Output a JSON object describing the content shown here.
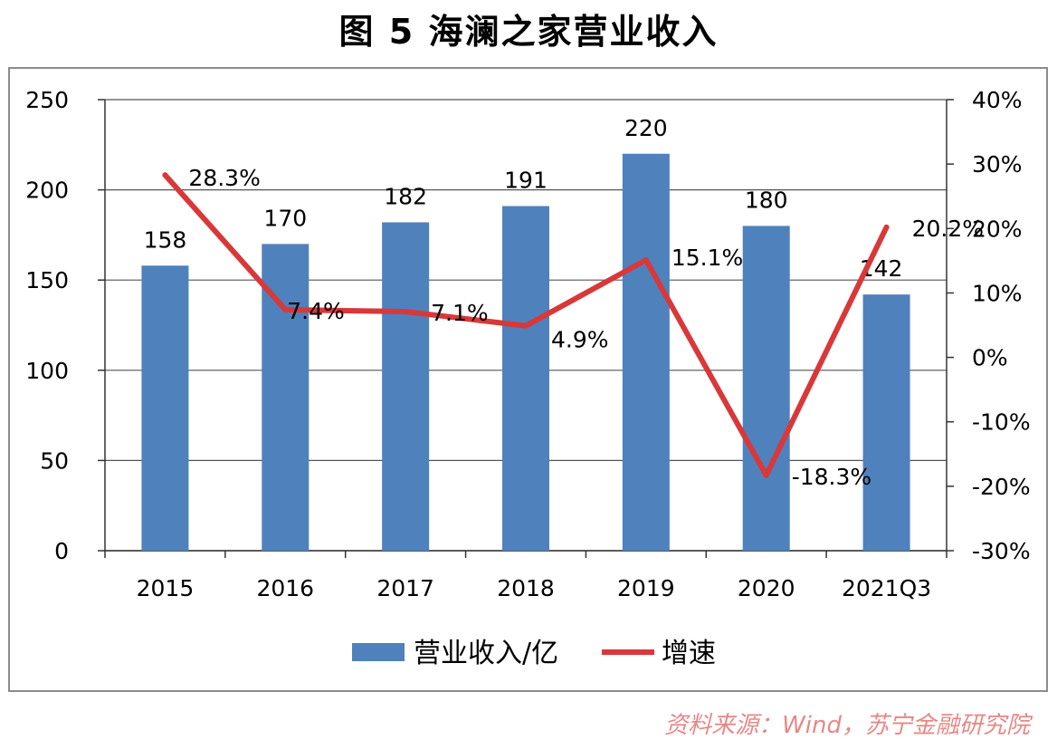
{
  "title": "图 5  海澜之家营业收入",
  "source": "资料来源：Wind，苏宁金融研究院",
  "colors": {
    "bar": "#4f81bd",
    "line": "#d9383a",
    "grid": "#555555"
  },
  "chart_data": {
    "type": "bar+line",
    "categories": [
      "2015",
      "2016",
      "2017",
      "2018",
      "2019",
      "2020",
      "2021Q3"
    ],
    "series": [
      {
        "name": "营业收入/亿",
        "type": "bar",
        "axis": "left",
        "values": [
          158,
          170,
          182,
          191,
          220,
          180,
          142
        ],
        "labels": [
          "158",
          "170",
          "182",
          "191",
          "220",
          "180",
          "142"
        ]
      },
      {
        "name": "增速",
        "type": "line",
        "axis": "right",
        "values": [
          28.3,
          7.4,
          7.1,
          4.9,
          15.1,
          -18.3,
          20.2
        ],
        "labels": [
          "28.3%",
          "7.4%",
          "7.1%",
          "4.9%",
          "15.1%",
          "-18.3%",
          "20.2%"
        ]
      }
    ],
    "y_left": {
      "ylim": [
        0,
        250
      ],
      "ticks": [
        "0",
        "50",
        "100",
        "150",
        "200",
        "250"
      ]
    },
    "y_right": {
      "ylim": [
        -30,
        40
      ],
      "ticks": [
        "-30%",
        "-20%",
        "-10%",
        "0%",
        "10%",
        "20%",
        "30%",
        "40%"
      ]
    },
    "grid": true,
    "legend": "bottom"
  }
}
